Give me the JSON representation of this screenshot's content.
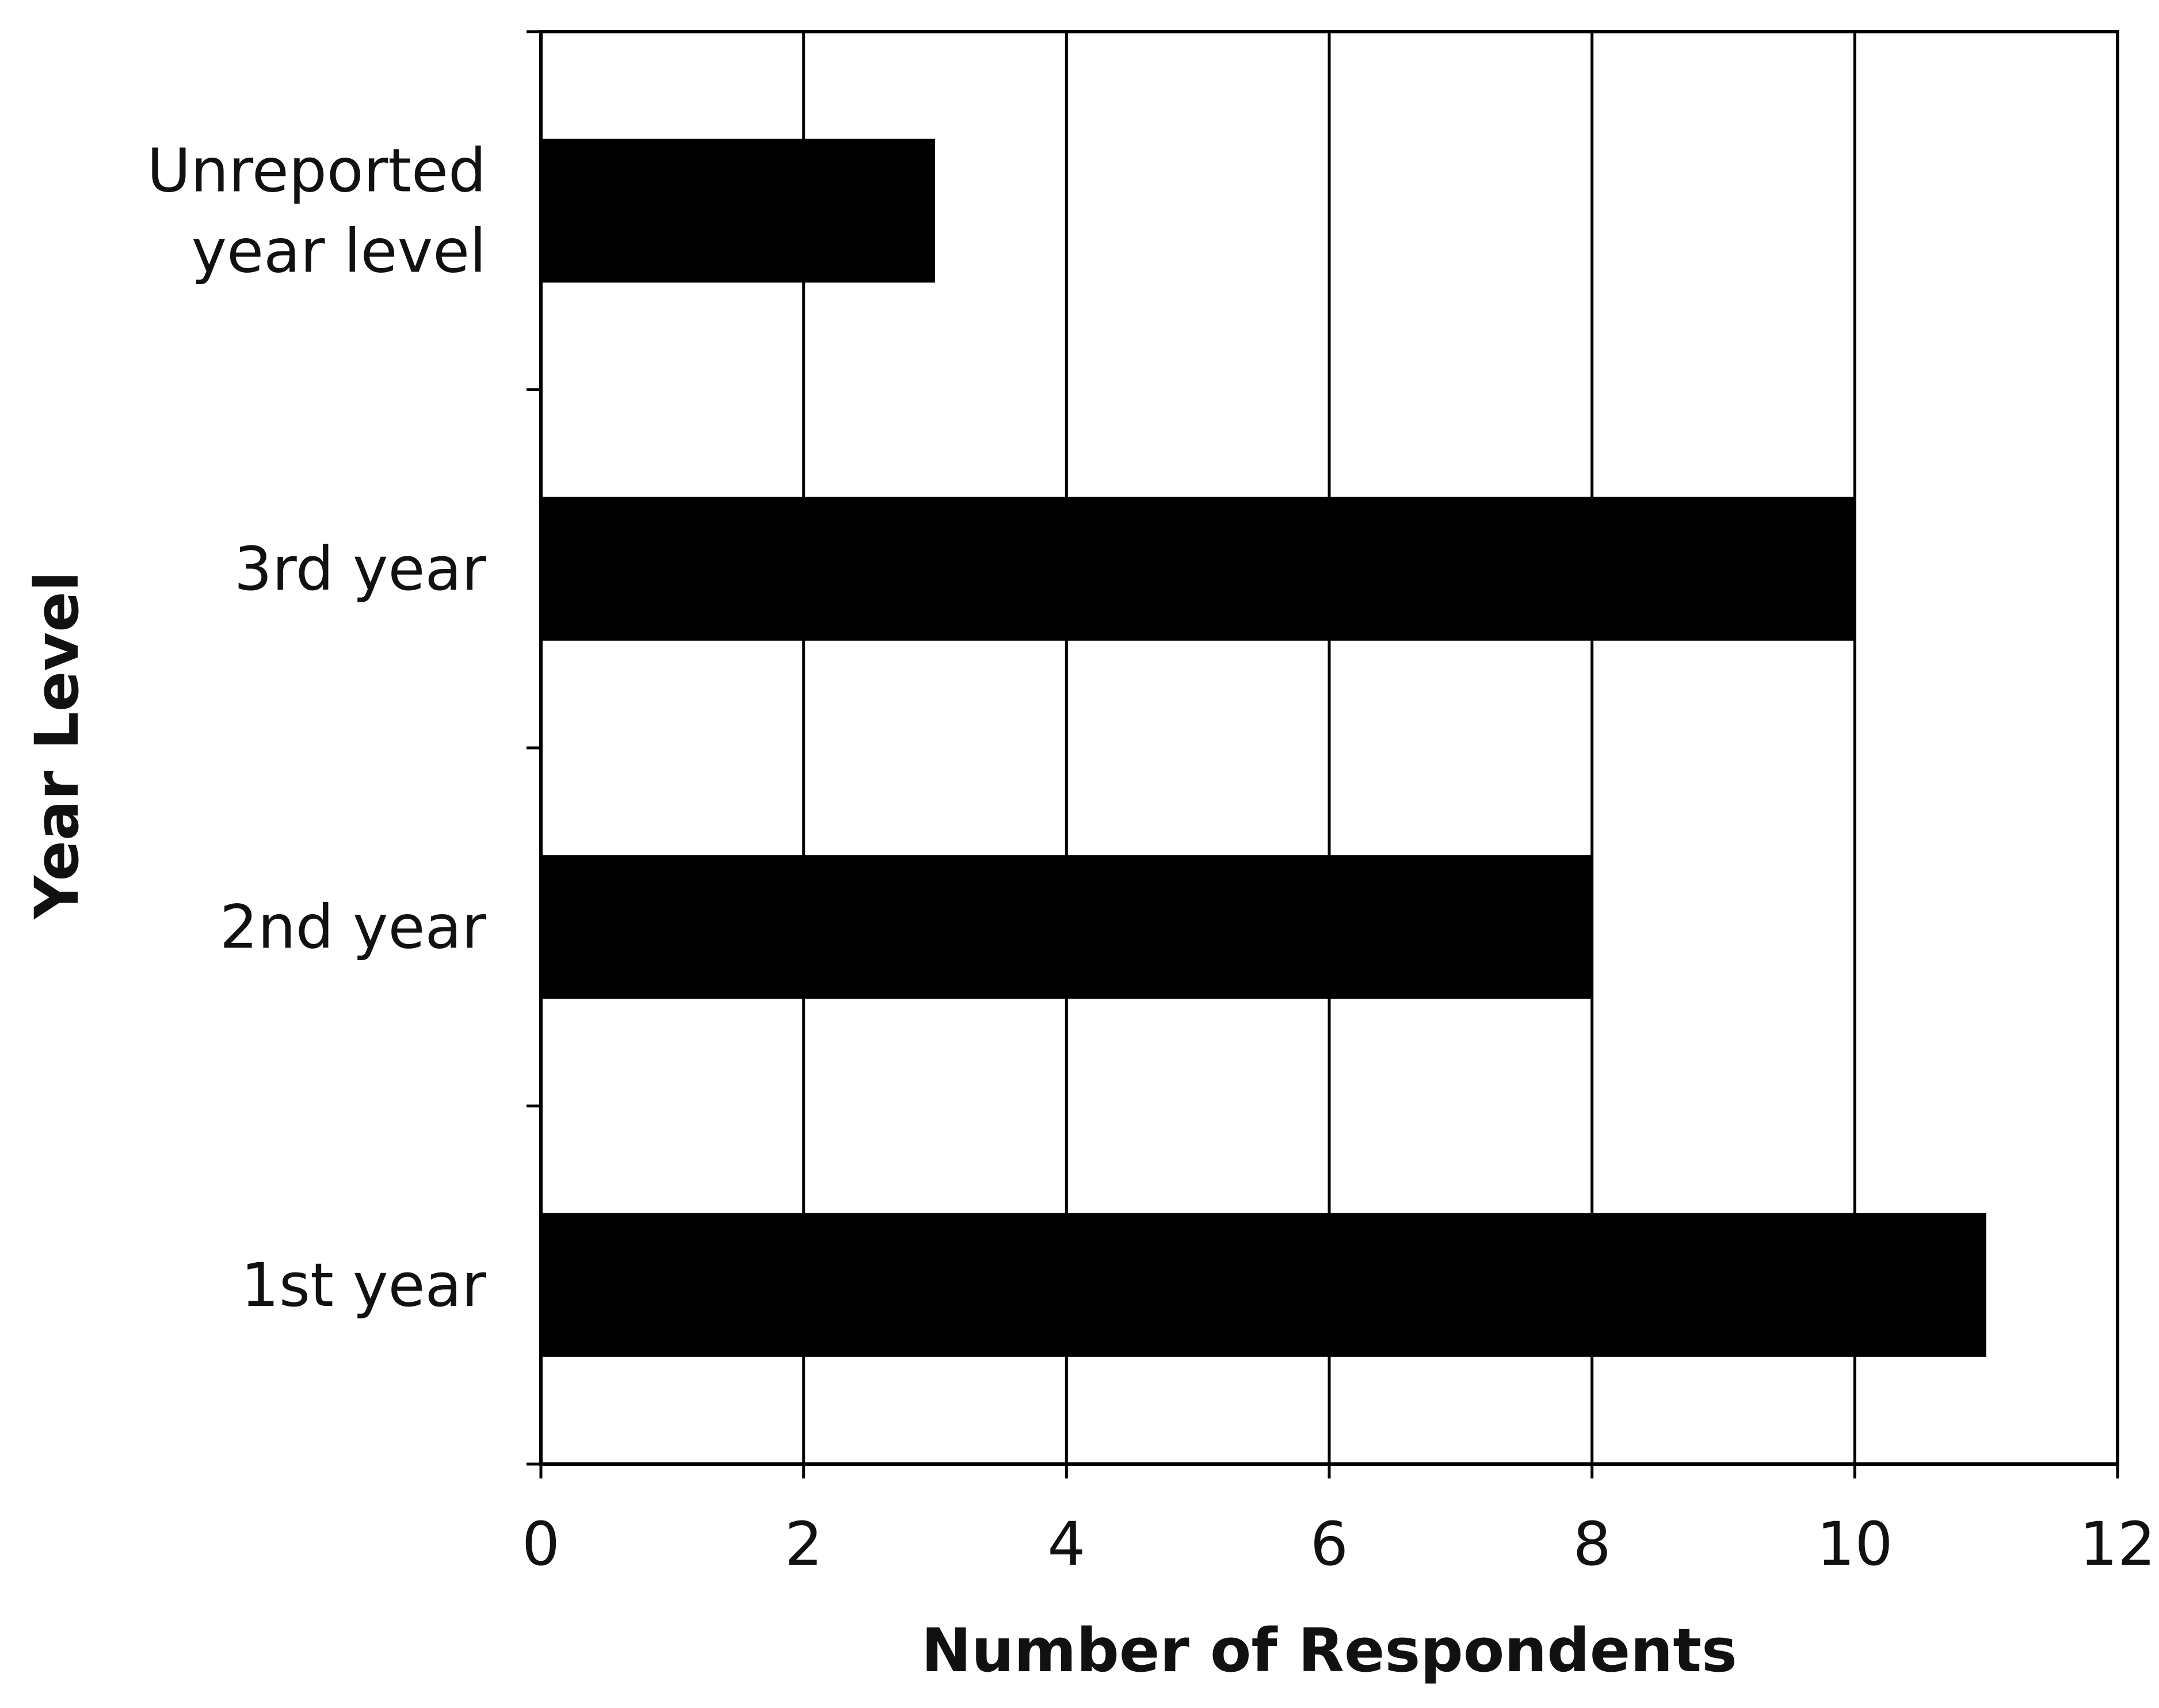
{
  "chart_data": {
    "type": "bar",
    "orientation": "horizontal",
    "title": "",
    "xlabel": "Number of Respondents",
    "ylabel": "Year Level",
    "categories": [
      "1st year",
      "2nd year",
      "3rd year",
      "Unreported year level"
    ],
    "category_lines": [
      [
        "1st year"
      ],
      [
        "2nd year"
      ],
      [
        "3rd year"
      ],
      [
        "Unreported",
        "year level"
      ]
    ],
    "values": [
      11,
      8,
      10,
      3
    ],
    "xlim": [
      0,
      12
    ],
    "xticks": [
      "0",
      "2",
      "4",
      "6",
      "8",
      "10",
      "12"
    ],
    "grid": "vertical",
    "legend": "none",
    "bar_color": "#000000"
  }
}
